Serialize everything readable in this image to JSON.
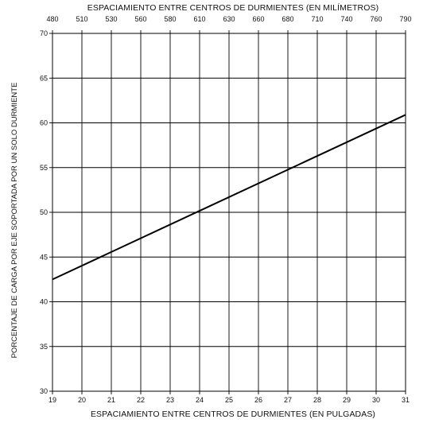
{
  "chart_data": {
    "type": "line",
    "title": "",
    "xlabel": "ESPACIAMIENTO ENTRE CENTROS DE DURMIENTES (EN PULGADAS)",
    "x2label": "ESPACIAMIENTO ENTRE CENTROS DE DURMIENTES (EN MILÍMETROS)",
    "ylabel": "PORCENTAJE DE CARGA POR EJE SOPORTADA POR UN SOLO DURMIENTE",
    "xlim": [
      19,
      31
    ],
    "ylim": [
      30,
      70
    ],
    "x_ticks": [
      "19",
      "20",
      "21",
      "22",
      "23",
      "24",
      "25",
      "26",
      "27",
      "28",
      "29",
      "30",
      "31"
    ],
    "x2_ticks": [
      "480",
      "510",
      "530",
      "560",
      "580",
      "610",
      "630",
      "660",
      "680",
      "710",
      "740",
      "760",
      "790"
    ],
    "y_ticks": [
      "30",
      "35",
      "40",
      "45",
      "50",
      "55",
      "60",
      "65",
      "70"
    ],
    "grid": true,
    "series": [
      {
        "x": [
          19,
          31
        ],
        "y": [
          42.5,
          60.9
        ]
      }
    ]
  }
}
